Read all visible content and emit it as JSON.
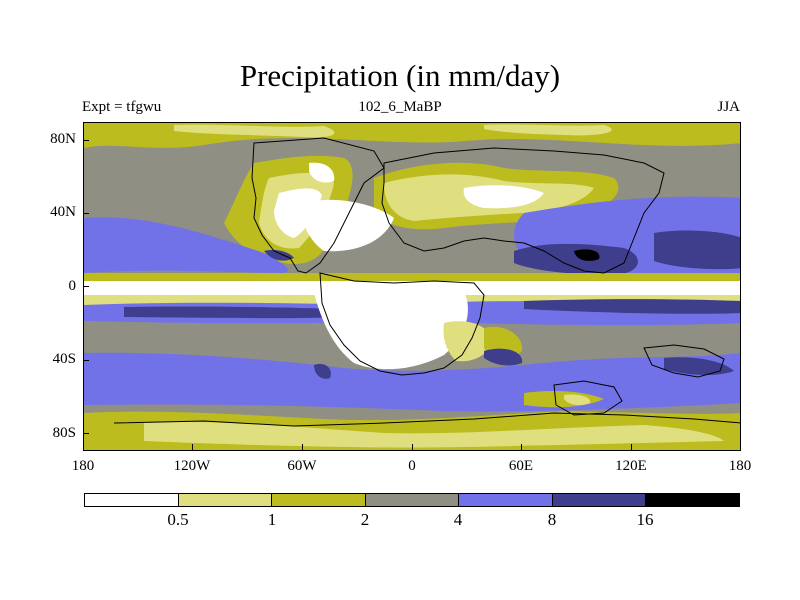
{
  "title": "Precipitation (in mm/day)",
  "left_label": "Expt = tfgwu",
  "center_label": "102_6_MaBP",
  "right_label": "JJA",
  "lat_labels": [
    "80N",
    "40N",
    "0",
    "40S",
    "80S"
  ],
  "lon_labels": [
    "180",
    "120W",
    "60W",
    "0",
    "60E",
    "120E",
    "180"
  ],
  "colorbar": {
    "labels": [
      "0.5",
      "1",
      "2",
      "4",
      "8",
      "16"
    ],
    "colors": [
      "#ffffff",
      "#e0df80",
      "#bdbc1e",
      "#8f8f84",
      "#7272e8",
      "#3e3e8c",
      "#000000"
    ]
  }
}
